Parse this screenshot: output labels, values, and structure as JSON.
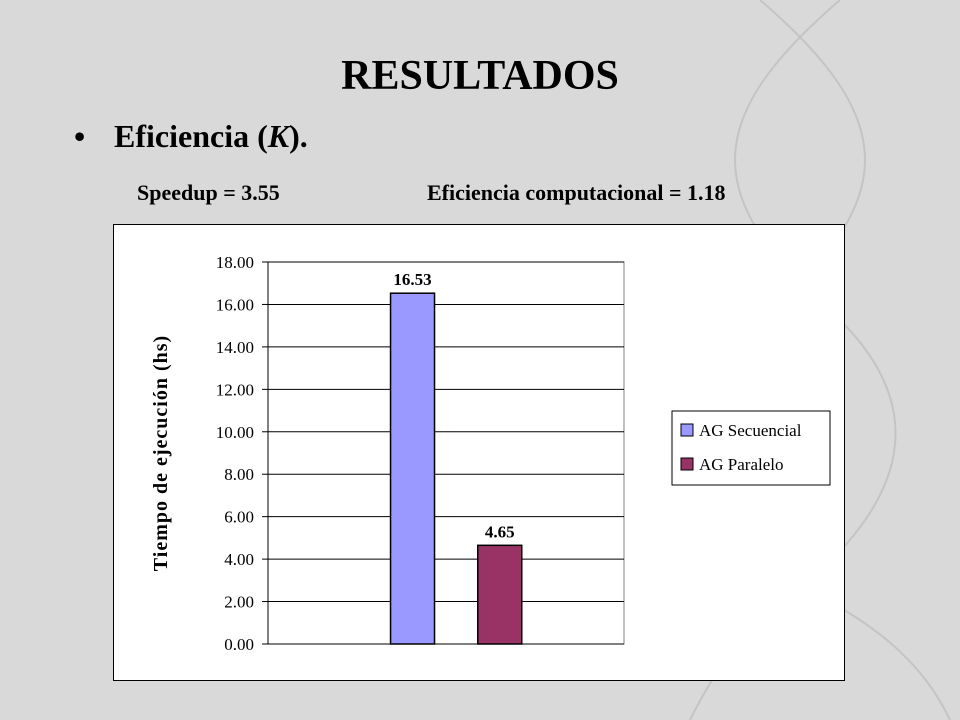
{
  "slide": {
    "title": "RESULTADOS",
    "bullet_symbol": "•",
    "bullet_text_prefix": "Eficiencia (",
    "bullet_text_italic": "K",
    "bullet_text_suffix": ").",
    "speedup": "Speedup = 3.55",
    "efficiency": "Eficiencia computacional = 1.18"
  },
  "colors": {
    "background": "#d9d9d9",
    "secuencial": "#9999ff",
    "paralelo": "#993366",
    "plot_area": "#ffffff"
  },
  "chart_data": {
    "type": "bar",
    "ylabel": "Tiempo de ejecución (hs)",
    "xlabel": "",
    "ylim": [
      0,
      18
    ],
    "ytick_labels": [
      "0.00",
      "2.00",
      "4.00",
      "6.00",
      "8.00",
      "10.00",
      "12.00",
      "14.00",
      "16.00",
      "18.00"
    ],
    "grid": true,
    "legend_position": "right",
    "series": [
      {
        "name": "AG Secuencial",
        "value": 16.53,
        "label": "16.53",
        "color": "#9999ff"
      },
      {
        "name": "AG Paralelo",
        "value": 4.65,
        "label": "4.65",
        "color": "#993366"
      }
    ]
  }
}
